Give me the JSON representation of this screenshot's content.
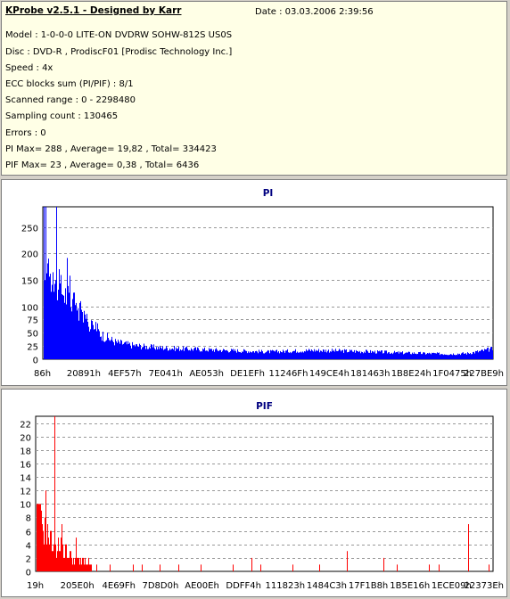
{
  "header": {
    "title": "KProbe v2.5.1 - Designed by Karr",
    "date": "Date : 03.03.2006 2:39:56",
    "model": "Model : 1-0-0-0 LITE-ON DVDRW SOHW-812S  US0S",
    "disc": "Disc : DVD-R , ProdiscF01 [Prodisc Technology Inc.]",
    "speed": "Speed : 4x",
    "ecc": "ECC blocks sum (PI/PIF) : 8/1",
    "range": "Scanned range : 0 - 2298480",
    "sampling": "Sampling count : 130465",
    "errors": "Errors : 0",
    "pi_stats": "PI Max= 288 , Average= 19,82 , Total= 334423",
    "pif_stats": "PIF Max= 23 , Average= 0,38 , Total= 6436"
  },
  "chart_data": [
    {
      "type": "bar",
      "title": "PI",
      "color": "#0000ff",
      "ylim": [
        0,
        288
      ],
      "yticks": [
        0,
        25,
        50,
        75,
        100,
        150,
        200,
        250
      ],
      "grid": true,
      "xlabels": [
        "86h",
        "20891h",
        "4EF57h",
        "7E041h",
        "AE053h",
        "DE1EFh",
        "11246Fh",
        "149CE4h",
        "181463h",
        "1B8E24h",
        "1F0475h",
        "227BE9h"
      ],
      "profile_x": [
        0,
        0.005,
        0.015,
        0.03,
        0.05,
        0.08,
        0.1,
        0.13,
        0.16,
        0.2,
        0.25,
        0.3,
        0.4,
        0.5,
        0.6,
        0.7,
        0.8,
        0.9,
        0.94,
        0.97,
        1.0
      ],
      "profile_y": [
        200,
        175,
        160,
        140,
        120,
        90,
        70,
        45,
        32,
        26,
        22,
        20,
        17,
        14,
        17,
        15,
        12,
        10,
        11,
        15,
        20
      ],
      "spikes": [
        [
          0.003,
          288
        ],
        [
          0.027,
          288
        ],
        [
          0.048,
          130
        ],
        [
          0.07,
          100
        ],
        [
          0.115,
          62
        ]
      ]
    },
    {
      "type": "bar",
      "title": "PIF",
      "color": "#ff0000",
      "ylim": [
        0,
        23
      ],
      "yticks": [
        0,
        2,
        4,
        6,
        8,
        10,
        12,
        14,
        16,
        18,
        20,
        22
      ],
      "grid": true,
      "xlabels": [
        "19h",
        "205E0h",
        "4E69Fh",
        "7D8D0h",
        "AE00Eh",
        "DDFF4h",
        "111823h",
        "1484C3h",
        "17F1B8h",
        "1B5E16h",
        "1ECE09h",
        "22373Eh"
      ],
      "profile_x": [
        0,
        0.02,
        0.04,
        0.06,
        0.08,
        0.1,
        0.12
      ],
      "profile_y": [
        8,
        6,
        4,
        3,
        2,
        1.5,
        1
      ],
      "spikes": [
        [
          0.005,
          10
        ],
        [
          0.02,
          12
        ],
        [
          0.04,
          23
        ],
        [
          0.055,
          7
        ],
        [
          0.085,
          5
        ],
        [
          0.13,
          1
        ],
        [
          0.16,
          1
        ],
        [
          0.21,
          1
        ],
        [
          0.23,
          1
        ],
        [
          0.27,
          1
        ],
        [
          0.31,
          1
        ],
        [
          0.36,
          1
        ],
        [
          0.43,
          1
        ],
        [
          0.47,
          2
        ],
        [
          0.49,
          1
        ],
        [
          0.56,
          1
        ],
        [
          0.62,
          1
        ],
        [
          0.68,
          3
        ],
        [
          0.76,
          2
        ],
        [
          0.79,
          1
        ],
        [
          0.86,
          1
        ],
        [
          0.88,
          1
        ],
        [
          0.945,
          7
        ],
        [
          0.99,
          1
        ]
      ]
    }
  ]
}
